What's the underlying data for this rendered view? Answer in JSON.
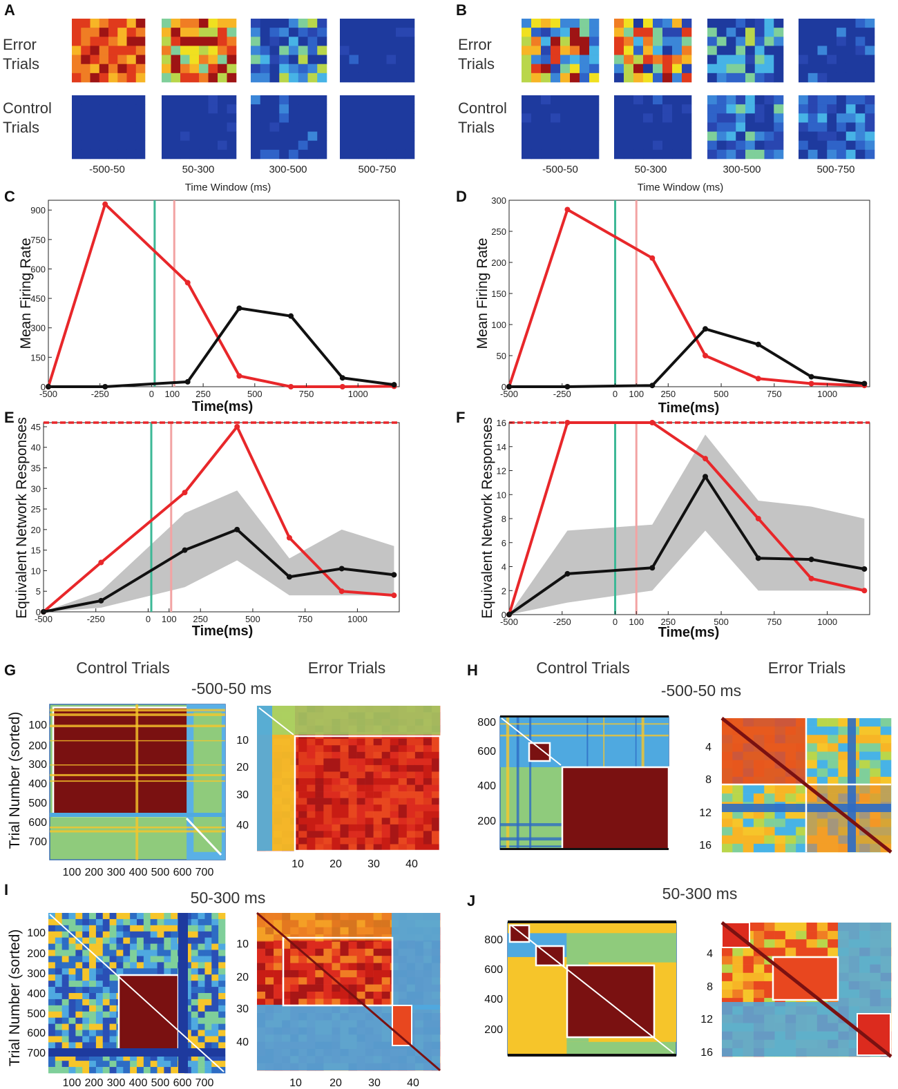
{
  "colors": {
    "red": "#e8272a",
    "black": "#111111",
    "cue": "#3cb896",
    "feedback": "#f2a3a3",
    "band": "#c4c4c4",
    "navy": "#1e3a9e"
  },
  "panels": {
    "A": "A",
    "B": "B",
    "C": "C",
    "D": "D",
    "E": "E",
    "F": "F",
    "G": "G",
    "H": "H",
    "I": "I",
    "J": "J"
  },
  "heatmap_rows": {
    "error": [
      "Error",
      "Trials"
    ],
    "control": [
      "Control",
      "Trials"
    ]
  },
  "time_windows": [
    "-500-50",
    "50-300",
    "300-500",
    "500-750"
  ],
  "time_window_xlabel": "Time Window (ms)",
  "labels": {
    "mean_firing_rate": "Mean Firing Rate",
    "equiv_network": "Equivalent Network Responses",
    "time_ms": "Time(ms)",
    "control_trials": "Control Trials",
    "error_trials": "Error Trials",
    "win1": "-500-50 ms",
    "win2": "50-300 ms",
    "trial_number": "Trial Number (sorted)"
  },
  "chart_data": [
    {
      "id": "C",
      "type": "line",
      "xlim": [
        -500,
        1200
      ],
      "ylim": [
        0,
        950
      ],
      "xticks": [
        "-500",
        "-250",
        "0",
        "100",
        "250",
        "500",
        "750",
        "1000"
      ],
      "yticks": [
        "0",
        "150",
        "300",
        "450",
        "600",
        "750",
        "900"
      ],
      "xlabel": "Time(ms)",
      "ylabel": "Mean Firing Rate",
      "vlines": [
        15,
        110
      ],
      "series": [
        {
          "name": "error",
          "x": [
            -500,
            -225,
            175,
            425,
            675,
            925,
            1175
          ],
          "y": [
            0,
            930,
            530,
            55,
            0,
            0,
            2
          ]
        },
        {
          "name": "control",
          "x": [
            -500,
            -225,
            175,
            425,
            675,
            925,
            1175
          ],
          "y": [
            0,
            0,
            25,
            400,
            360,
            45,
            10
          ]
        }
      ]
    },
    {
      "id": "D",
      "type": "line",
      "xlim": [
        -500,
        1200
      ],
      "ylim": [
        0,
        300
      ],
      "xticks": [
        "-500",
        "-250",
        "0",
        "100",
        "250",
        "500",
        "750",
        "1000"
      ],
      "yticks": [
        "0",
        "50",
        "100",
        "150",
        "200",
        "250",
        "300"
      ],
      "xlabel": "Time(ms)",
      "ylabel": "Mean Firing Rate",
      "vlines": [
        0,
        100
      ],
      "series": [
        {
          "name": "error",
          "x": [
            -500,
            -225,
            175,
            425,
            675,
            925,
            1175
          ],
          "y": [
            0,
            285,
            207,
            50,
            13,
            5,
            2
          ]
        },
        {
          "name": "control",
          "x": [
            -500,
            -225,
            175,
            425,
            675,
            925,
            1175
          ],
          "y": [
            0,
            0,
            2,
            93,
            68,
            16,
            5
          ]
        }
      ]
    },
    {
      "id": "E",
      "type": "line",
      "xlim": [
        -500,
        1200
      ],
      "ylim": [
        0,
        46
      ],
      "xticks": [
        "-500",
        "-250",
        "0",
        "100",
        "250",
        "500",
        "750",
        "1000"
      ],
      "yticks": [
        "0",
        "5",
        "10",
        "15",
        "20",
        "25",
        "30",
        "35",
        "40",
        "45"
      ],
      "xlabel": "Time(ms)",
      "ylabel": "Equivalent Network Responses",
      "vlines": [
        15,
        110
      ],
      "hline": 46,
      "series": [
        {
          "name": "error",
          "x": [
            -500,
            -225,
            175,
            425,
            675,
            925,
            1175
          ],
          "y": [
            0,
            12,
            29,
            45,
            18,
            5,
            4
          ]
        },
        {
          "name": "control",
          "x": [
            -500,
            -225,
            175,
            425,
            675,
            925,
            1175
          ],
          "y": [
            0,
            2.7,
            15,
            20,
            8.5,
            10.5,
            9
          ]
        }
      ],
      "band": {
        "x": [
          -500,
          -225,
          175,
          425,
          675,
          925,
          1175
        ],
        "upper": [
          0,
          5,
          24,
          29.5,
          13,
          20,
          16
        ],
        "lower": [
          0,
          1,
          6,
          12.5,
          4,
          4,
          4
        ]
      }
    },
    {
      "id": "F",
      "type": "line",
      "xlim": [
        -500,
        1200
      ],
      "ylim": [
        0,
        16
      ],
      "xticks": [
        "-500",
        "-250",
        "0",
        "100",
        "250",
        "500",
        "750",
        "1000"
      ],
      "yticks": [
        "0",
        "2",
        "4",
        "6",
        "8",
        "10",
        "12",
        "14",
        "16"
      ],
      "xlabel": "Time(ms)",
      "ylabel": "Equivalent Network Responses",
      "vlines": [
        0,
        100
      ],
      "hline": 16,
      "series": [
        {
          "name": "error",
          "x": [
            -500,
            -225,
            175,
            425,
            675,
            925,
            1175
          ],
          "y": [
            0,
            16,
            16,
            13,
            8,
            3,
            2
          ]
        },
        {
          "name": "control",
          "x": [
            -500,
            -225,
            175,
            425,
            675,
            925,
            1175
          ],
          "y": [
            0,
            3.4,
            3.9,
            11.5,
            4.7,
            4.6,
            3.8
          ]
        }
      ],
      "band": {
        "x": [
          -500,
          -225,
          175,
          425,
          675,
          925,
          1175
        ],
        "upper": [
          0,
          7,
          7.5,
          15,
          9.5,
          9,
          8
        ],
        "lower": [
          0,
          1,
          2,
          7,
          2,
          2,
          2
        ]
      }
    },
    {
      "id": "G-control",
      "type": "heatmap",
      "yticks": [
        "100",
        "200",
        "300",
        "400",
        "500",
        "600",
        "700"
      ],
      "xticks": [
        "100",
        "200",
        "300",
        "400",
        "500",
        "600",
        "700"
      ]
    },
    {
      "id": "G-error",
      "type": "heatmap",
      "yticks": [
        "10",
        "20",
        "30",
        "40"
      ],
      "xticks": [
        "10",
        "20",
        "30",
        "40"
      ]
    },
    {
      "id": "H-control",
      "type": "heatmap",
      "yticks": [
        "800",
        "600",
        "400",
        "200"
      ]
    },
    {
      "id": "H-error",
      "type": "heatmap",
      "yticks": [
        "4",
        "8",
        "12",
        "16"
      ]
    },
    {
      "id": "I-control",
      "type": "heatmap",
      "yticks": [
        "100",
        "200",
        "300",
        "400",
        "500",
        "600",
        "700"
      ],
      "xticks": [
        "100",
        "200",
        "300",
        "400",
        "500",
        "600",
        "700"
      ]
    },
    {
      "id": "I-error",
      "type": "heatmap",
      "yticks": [
        "10",
        "20",
        "30",
        "40"
      ],
      "xticks": [
        "10",
        "20",
        "30",
        "40"
      ]
    },
    {
      "id": "J-control",
      "type": "heatmap",
      "yticks": [
        "800",
        "600",
        "400",
        "200"
      ]
    },
    {
      "id": "J-error",
      "type": "heatmap",
      "yticks": [
        "4",
        "8",
        "12",
        "16"
      ]
    }
  ]
}
